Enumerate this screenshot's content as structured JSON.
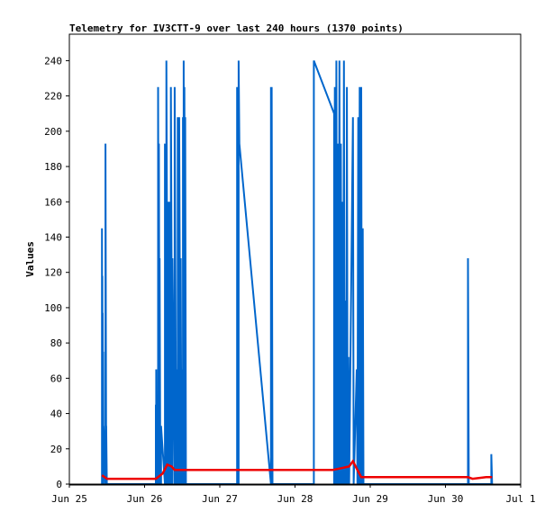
{
  "chart_data": {
    "type": "line",
    "title": "Telemetry for IV3CTT-9 over last 240 hours (1370 points)",
    "xlabel": "",
    "ylabel": "Values",
    "x_type": "date",
    "xlim": [
      "2025-06-25T00:00",
      "2025-07-01T00:00"
    ],
    "ylim": [
      0,
      255
    ],
    "x_ticks": [
      {
        "x": "2025-06-25T00:00",
        "label": "Jun 25"
      },
      {
        "x": "2025-06-26T00:00",
        "label": "Jun 26"
      },
      {
        "x": "2025-06-27T00:00",
        "label": "Jun 27"
      },
      {
        "x": "2025-06-28T00:00",
        "label": "Jun 28"
      },
      {
        "x": "2025-06-29T00:00",
        "label": "Jun 29"
      },
      {
        "x": "2025-06-30T00:00",
        "label": "Jun 30"
      },
      {
        "x": "2025-07-01T00:00",
        "label": "Jul 1"
      }
    ],
    "y_ticks": [
      0,
      20,
      40,
      60,
      80,
      100,
      120,
      140,
      160,
      180,
      200,
      220,
      240
    ],
    "grid": false,
    "series": [
      {
        "color": "#0066cc",
        "points": [
          [
            "2025-06-25T10:24",
            0
          ],
          [
            "2025-06-25T10:24",
            145
          ],
          [
            "2025-06-25T10:31",
            0
          ],
          [
            "2025-06-25T10:31",
            118
          ],
          [
            "2025-06-25T10:38",
            0
          ],
          [
            "2025-06-25T10:38",
            97
          ],
          [
            "2025-06-25T10:46",
            0
          ],
          [
            "2025-06-25T10:46",
            75
          ],
          [
            "2025-06-25T10:53",
            0
          ],
          [
            "2025-06-25T10:53",
            33
          ],
          [
            "2025-06-25T11:31",
            0
          ],
          [
            "2025-06-25T11:31",
            193
          ],
          [
            "2025-06-25T11:45",
            0
          ],
          [
            "2025-06-25T11:45",
            33
          ],
          [
            "2025-06-25T11:58",
            0
          ],
          [
            "2025-06-26T03:36",
            0
          ],
          [
            "2025-06-26T03:36",
            45
          ],
          [
            "2025-06-26T03:43",
            0
          ],
          [
            "2025-06-26T03:43",
            65
          ],
          [
            "2025-06-26T03:50",
            0
          ],
          [
            "2025-06-26T03:50",
            50
          ],
          [
            "2025-06-26T04:19",
            0
          ],
          [
            "2025-06-26T04:19",
            225
          ],
          [
            "2025-06-26T04:34",
            0
          ],
          [
            "2025-06-26T04:34",
            193
          ],
          [
            "2025-06-26T04:48",
            0
          ],
          [
            "2025-06-26T04:48",
            128
          ],
          [
            "2025-06-26T05:02",
            0
          ],
          [
            "2025-06-26T05:02",
            33
          ],
          [
            "2025-06-26T05:16",
            0
          ],
          [
            "2025-06-26T05:16",
            33
          ],
          [
            "2025-06-26T06:29",
            0
          ],
          [
            "2025-06-26T06:29",
            193
          ],
          [
            "2025-06-26T06:58",
            0
          ],
          [
            "2025-06-26T06:58",
            240
          ],
          [
            "2025-06-26T07:26",
            0
          ],
          [
            "2025-06-26T07:26",
            160
          ],
          [
            "2025-06-26T07:55",
            0
          ],
          [
            "2025-06-26T07:55",
            160
          ],
          [
            "2025-06-26T08:24",
            0
          ],
          [
            "2025-06-26T08:24",
            225
          ],
          [
            "2025-06-26T08:53",
            0
          ],
          [
            "2025-06-26T08:53",
            128
          ],
          [
            "2025-06-26T09:36",
            0
          ],
          [
            "2025-06-26T09:36",
            225
          ],
          [
            "2025-06-26T10:05",
            0
          ],
          [
            "2025-06-26T10:05",
            65
          ],
          [
            "2025-06-26T10:34",
            0
          ],
          [
            "2025-06-26T10:34",
            208
          ],
          [
            "2025-06-26T11:02",
            0
          ],
          [
            "2025-06-26T11:02",
            208
          ],
          [
            "2025-06-26T11:31",
            0
          ],
          [
            "2025-06-26T11:31",
            128
          ],
          [
            "2025-06-26T11:46",
            0
          ],
          [
            "2025-06-26T11:46",
            65
          ],
          [
            "2025-06-26T12:14",
            0
          ],
          [
            "2025-06-26T12:14",
            208
          ],
          [
            "2025-06-26T12:29",
            0
          ],
          [
            "2025-06-26T12:29",
            240
          ],
          [
            "2025-06-26T12:43",
            0
          ],
          [
            "2025-06-26T12:43",
            225
          ],
          [
            "2025-06-26T12:58",
            0
          ],
          [
            "2025-06-26T12:58",
            208
          ],
          [
            "2025-06-26T13:12",
            0
          ],
          [
            "2025-06-27T05:31",
            0
          ],
          [
            "2025-06-27T05:31",
            225
          ],
          [
            "2025-06-27T06:00",
            0
          ],
          [
            "2025-06-27T06:00",
            240
          ],
          [
            "2025-06-27T06:14",
            193
          ],
          [
            "2025-06-27T16:19",
            0
          ],
          [
            "2025-06-27T16:19",
            225
          ],
          [
            "2025-06-27T16:34",
            0
          ],
          [
            "2025-06-27T16:34",
            225
          ],
          [
            "2025-06-27T16:48",
            0
          ],
          [
            "2025-06-28T06:00",
            0
          ],
          [
            "2025-06-28T06:00",
            240
          ],
          [
            "2025-06-28T12:29",
            210
          ],
          [
            "2025-06-28T12:29",
            0
          ],
          [
            "2025-06-28T12:43",
            225
          ],
          [
            "2025-06-28T12:58",
            0
          ],
          [
            "2025-06-28T13:12",
            240
          ],
          [
            "2025-06-28T13:26",
            0
          ],
          [
            "2025-06-28T13:41",
            193
          ],
          [
            "2025-06-28T13:55",
            0
          ],
          [
            "2025-06-28T14:10",
            240
          ],
          [
            "2025-06-28T14:24",
            0
          ],
          [
            "2025-06-28T14:38",
            193
          ],
          [
            "2025-06-28T14:53",
            0
          ],
          [
            "2025-06-28T15:07",
            160
          ],
          [
            "2025-06-28T15:22",
            0
          ],
          [
            "2025-06-28T15:36",
            240
          ],
          [
            "2025-06-28T15:50",
            0
          ],
          [
            "2025-06-28T16:05",
            104
          ],
          [
            "2025-06-28T16:19",
            0
          ],
          [
            "2025-06-28T16:34",
            225
          ],
          [
            "2025-06-28T16:48",
            0
          ],
          [
            "2025-06-28T17:02",
            72
          ],
          [
            "2025-06-28T17:17",
            0
          ],
          [
            "2025-06-28T18:29",
            208
          ],
          [
            "2025-06-28T18:43",
            0
          ],
          [
            "2025-06-28T19:41",
            65
          ],
          [
            "2025-06-28T19:55",
            0
          ],
          [
            "2025-06-28T20:10",
            208
          ],
          [
            "2025-06-28T20:24",
            0
          ],
          [
            "2025-06-28T20:38",
            225
          ],
          [
            "2025-06-28T20:53",
            0
          ],
          [
            "2025-06-28T21:07",
            225
          ],
          [
            "2025-06-28T21:22",
            0
          ],
          [
            "2025-06-28T21:36",
            145
          ],
          [
            "2025-06-28T21:50",
            0
          ],
          [
            "2025-06-30T07:12",
            0
          ],
          [
            "2025-06-30T07:12",
            128
          ],
          [
            "2025-06-30T07:26",
            0
          ],
          [
            "2025-06-30T14:38",
            0
          ],
          [
            "2025-06-30T14:38",
            17
          ],
          [
            "2025-06-30T14:53",
            0
          ]
        ]
      },
      {
        "color": "#ee0000",
        "points": [
          [
            "2025-06-25T10:24",
            5
          ],
          [
            "2025-06-25T12:00",
            3
          ],
          [
            "2025-06-26T03:36",
            3
          ],
          [
            "2025-06-26T05:46",
            6
          ],
          [
            "2025-06-26T07:12",
            11
          ],
          [
            "2025-06-26T08:38",
            10
          ],
          [
            "2025-06-26T09:36",
            8
          ],
          [
            "2025-06-27T05:31",
            8
          ],
          [
            "2025-06-28T12:00",
            8
          ],
          [
            "2025-06-28T17:17",
            10
          ],
          [
            "2025-06-28T18:29",
            13
          ],
          [
            "2025-06-28T19:55",
            8
          ],
          [
            "2025-06-28T21:07",
            4
          ],
          [
            "2025-06-30T07:12",
            4
          ],
          [
            "2025-06-30T08:38",
            3
          ],
          [
            "2025-06-30T12:58",
            4
          ],
          [
            "2025-06-30T14:53",
            4
          ]
        ]
      }
    ]
  }
}
